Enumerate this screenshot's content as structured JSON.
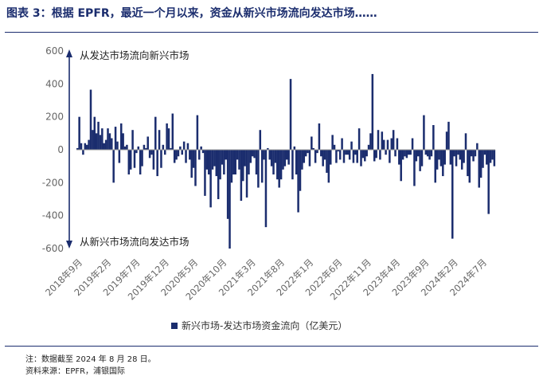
{
  "title": "图表 3：根据 EPFR，最近一个月以来，资金从新兴市场流向发达市场……",
  "chart_data": {
    "type": "bar",
    "ylim": [
      -600,
      600
    ],
    "yticks": [
      -600,
      -400,
      -200,
      0,
      200,
      400,
      600
    ],
    "xtick_labels": [
      "2018年9月",
      "2019年2月",
      "2019年7月",
      "2019年12月",
      "2020年5月",
      "2020年10月",
      "2021年3月",
      "2021年8月",
      "2022年1月",
      "2022年6月",
      "2022年11月",
      "2023年4月",
      "2023年9月",
      "2024年2月",
      "2024年7月"
    ],
    "annotations": {
      "top": "从发达市场流向新兴市场",
      "bottom": "从新兴市场流向发达市场"
    },
    "series": [
      {
        "name": "新兴市场-发达市场资金流向（亿美元）",
        "color": "#1b2d6e",
        "values": [
          10,
          200,
          40,
          -30,
          40,
          30,
          60,
          365,
          120,
          200,
          100,
          170,
          90,
          130,
          40,
          60,
          130,
          100,
          70,
          -200,
          140,
          50,
          -80,
          160,
          100,
          20,
          30,
          -150,
          -120,
          120,
          -110,
          -20,
          20,
          -150,
          -100,
          30,
          10,
          80,
          -50,
          -30,
          -120,
          200,
          -160,
          120,
          -110,
          30,
          -30,
          160,
          130,
          10,
          220,
          -80,
          -60,
          -40,
          20,
          -30,
          50,
          -80,
          40,
          -60,
          -170,
          -110,
          -220,
          210,
          -60,
          20,
          -20,
          -280,
          -120,
          -150,
          -350,
          -120,
          -100,
          -160,
          -300,
          -180,
          -90,
          -150,
          -60,
          -420,
          -600,
          -200,
          -150,
          -150,
          -60,
          -120,
          -310,
          -190,
          -100,
          -290,
          -150,
          -80,
          -40,
          -50,
          -150,
          -230,
          120,
          -200,
          -60,
          -470,
          10,
          -60,
          -100,
          -150,
          -80,
          -180,
          -230,
          -180,
          -120,
          -100,
          -60,
          -90,
          430,
          -180,
          20,
          -150,
          -380,
          -250,
          -120,
          -80,
          -40,
          -20,
          -100,
          80,
          10,
          -80,
          -20,
          160,
          -40,
          -100,
          -60,
          -140,
          -200,
          -90,
          90,
          30,
          -80,
          -10,
          -60,
          70,
          -80,
          -30,
          -30,
          -60,
          50,
          -80,
          -30,
          -80,
          130,
          -100,
          -50,
          -70,
          -40,
          30,
          100,
          460,
          -70,
          -50,
          120,
          -60,
          110,
          60,
          -30,
          60,
          -80,
          70,
          120,
          -40,
          70,
          -90,
          -190,
          -60,
          -40,
          -50,
          -30,
          -30,
          70,
          -220,
          -70,
          -40,
          -130,
          -100,
          210,
          -30,
          -40,
          -60,
          -40,
          150,
          -200,
          -120,
          -60,
          -100,
          -160,
          -90,
          110,
          170,
          -90,
          -540,
          -40,
          -100,
          -30,
          -60,
          -120,
          -80,
          100,
          -160,
          -200,
          -40,
          -70,
          -40,
          40,
          -230,
          -170,
          -110,
          -30,
          -90,
          -390,
          -80,
          -60,
          -100
        ]
      }
    ]
  },
  "notes": {
    "line1": "注：数据截至 2024 年 8 月 28 日。",
    "line2": "资料来源：EPFR，浦银国际"
  }
}
